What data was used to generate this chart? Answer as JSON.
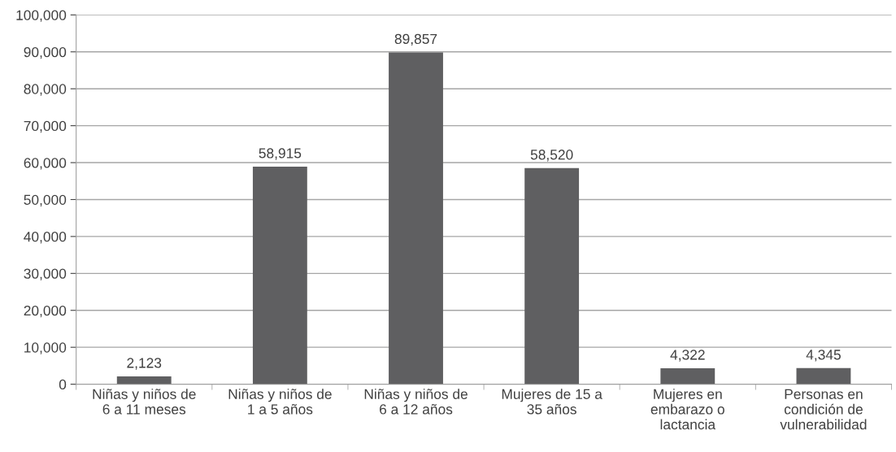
{
  "chart_data": {
    "type": "bar",
    "categories": [
      "Niñas y niños de\n6 a 11 meses",
      "Niñas y niños de\n1 a 5 años",
      "Niñas y niños de\n6 a 12 años",
      "Mujeres de 15 a\n35 años",
      "Mujeres en\nembarazo o\nlactancia",
      "Personas en\ncondición de\nvulnerabilidad"
    ],
    "values": [
      2123,
      58915,
      89857,
      58520,
      4322,
      4345
    ],
    "color": "#5f5f61",
    "ylim": [
      0,
      100000
    ],
    "yticks": [
      {
        "value": 0,
        "label": "0"
      },
      {
        "value": 10000,
        "label": "10,000"
      },
      {
        "value": 20000,
        "label": "20,000"
      },
      {
        "value": 30000,
        "label": "30,000"
      },
      {
        "value": 40000,
        "label": "40,000"
      },
      {
        "value": 50000,
        "label": "50,000"
      },
      {
        "value": 60000,
        "label": "60,000"
      },
      {
        "value": 70000,
        "label": "70,000"
      },
      {
        "value": 80000,
        "label": "80,000"
      },
      {
        "value": 90000,
        "label": "90,000"
      },
      {
        "value": 100000,
        "label": "100,000"
      }
    ],
    "grid": "y",
    "value_labels": [
      "2,123",
      "58,915",
      "89,857",
      "58,520",
      "4,322",
      "4,345"
    ]
  }
}
